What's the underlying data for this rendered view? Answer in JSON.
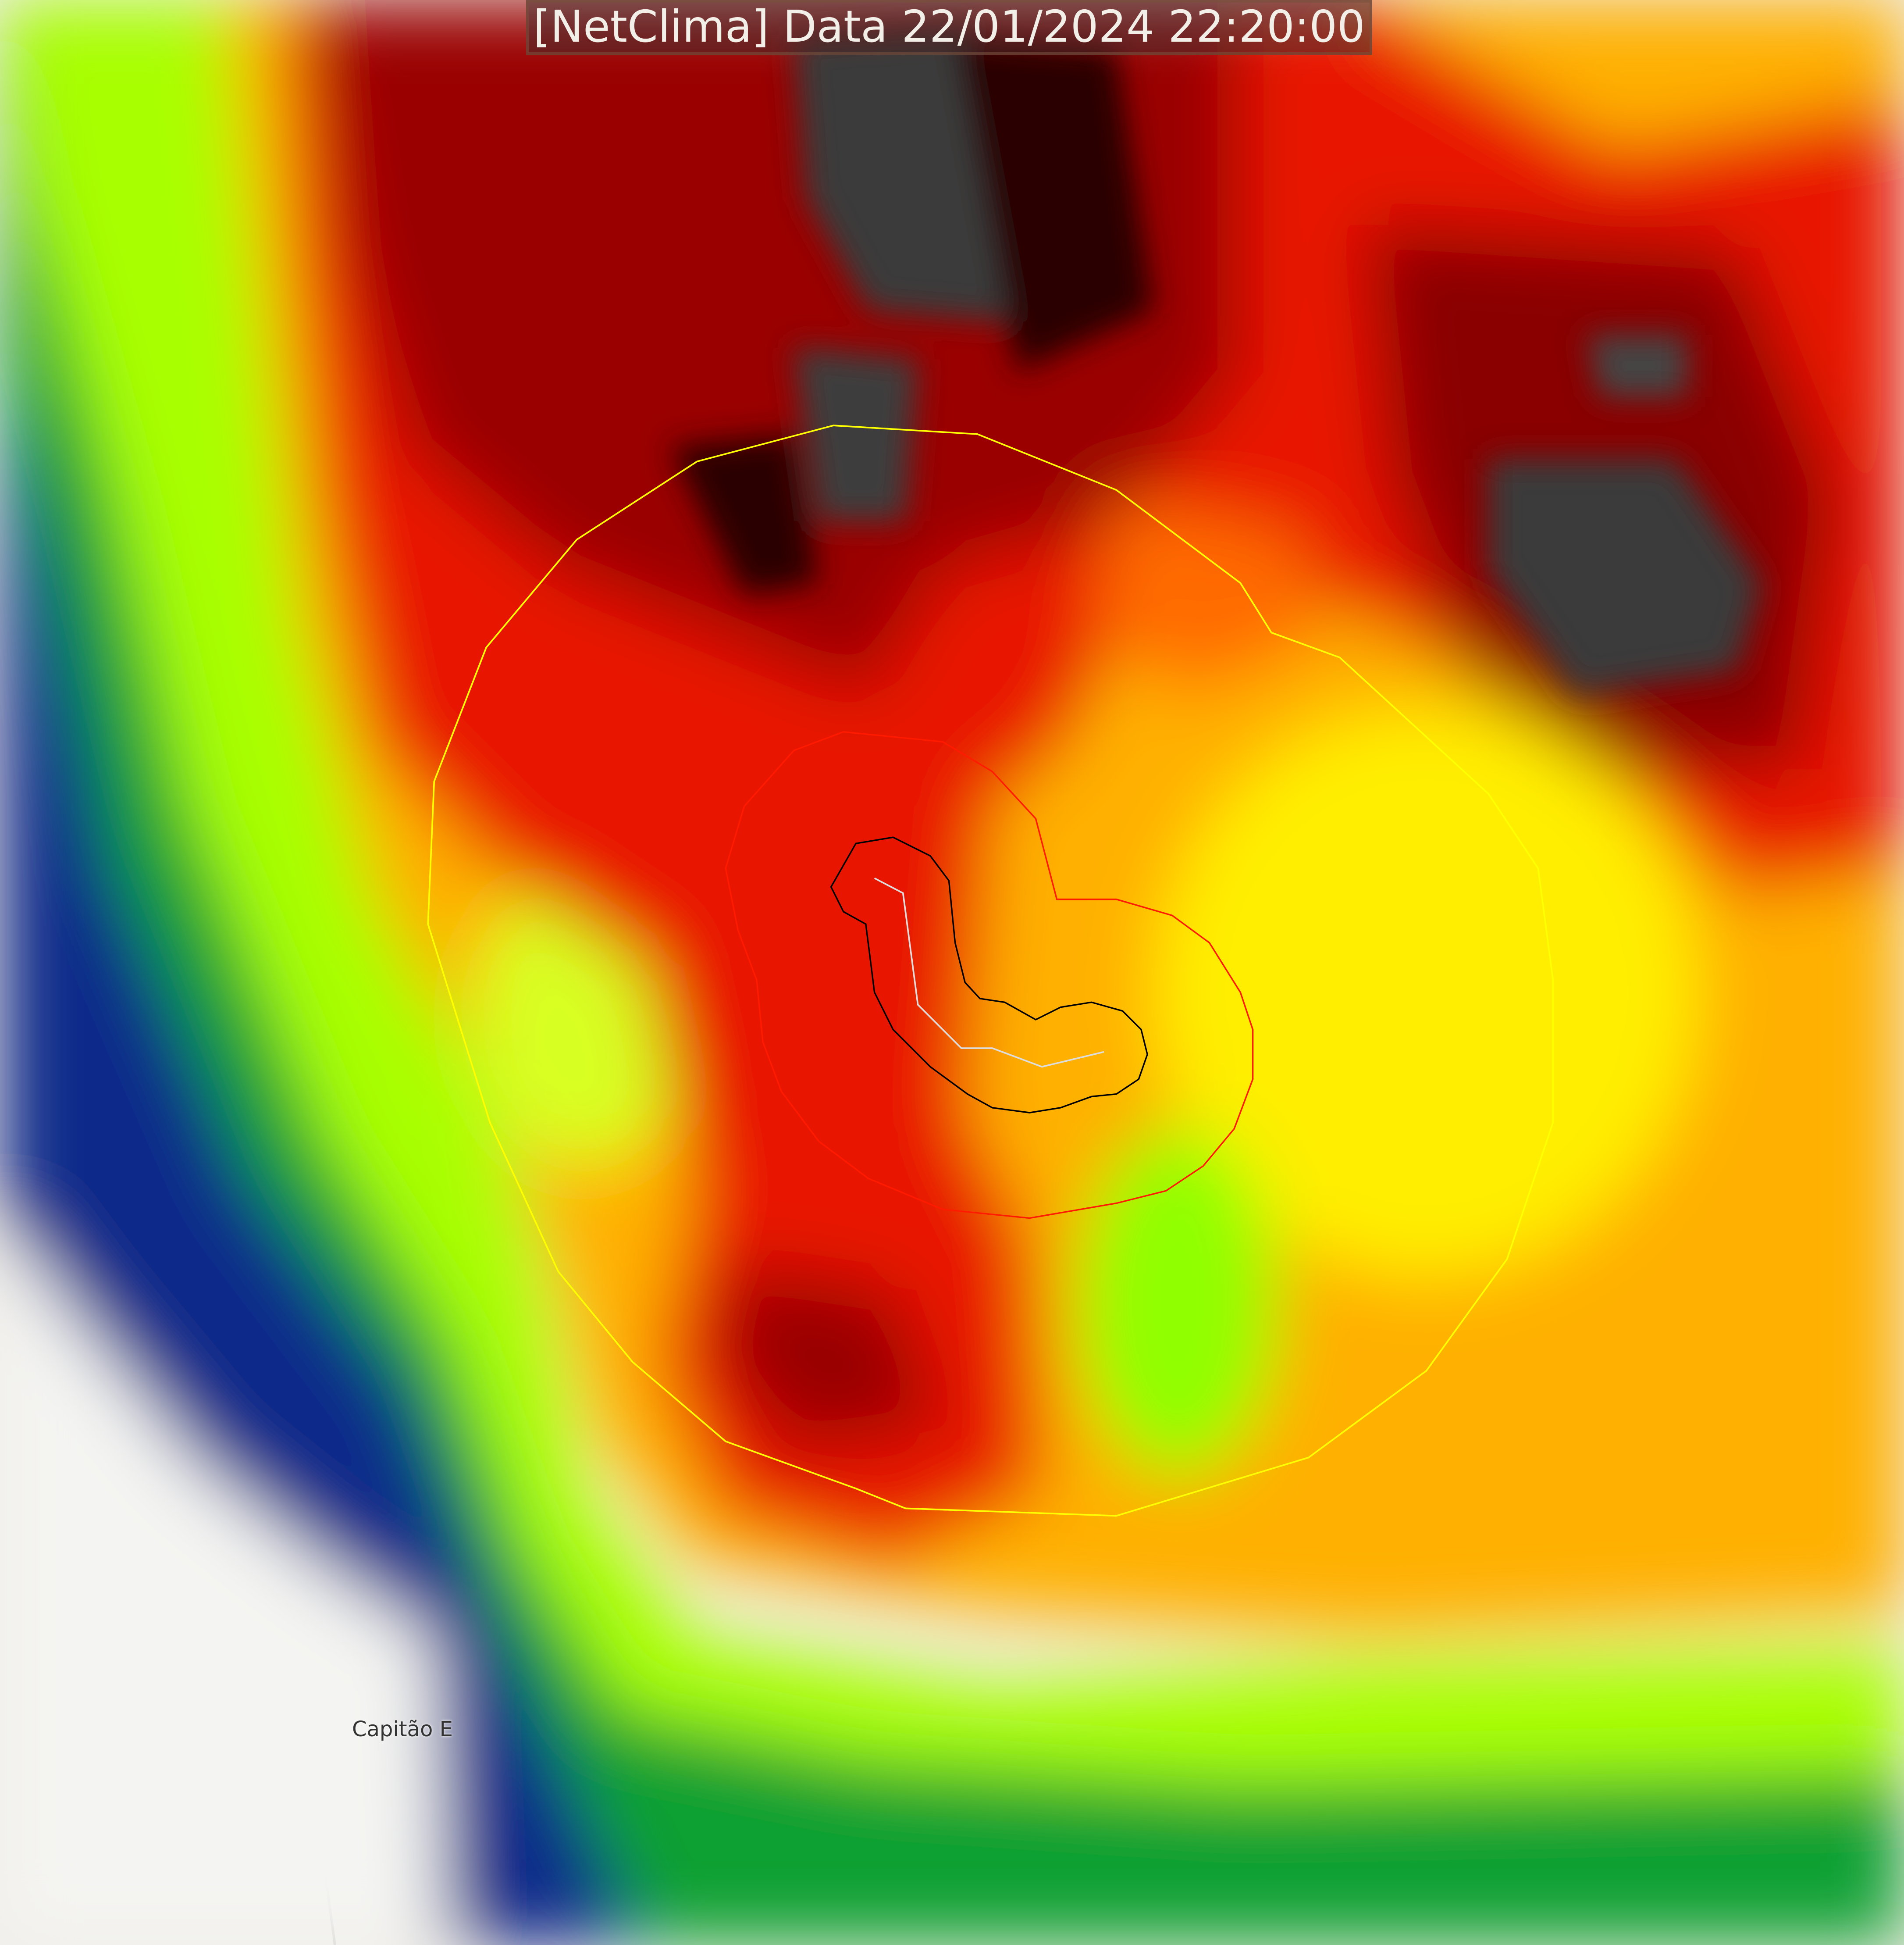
{
  "title": "[NetClima] Data 22/01/2024 22:20:00",
  "map": {
    "place_label": "Capitão E",
    "layers": [
      "satellite-cloud-top-temperature",
      "storm-contour-outer-yellow",
      "storm-contour-middle-red",
      "storm-contour-inner-black",
      "storm-track-white"
    ],
    "colors": {
      "basemap": "#f0eee9",
      "contour_outer": "#ffff00",
      "contour_middle": "#ff0000",
      "contour_inner": "#000000",
      "track": "#ffffff"
    }
  }
}
